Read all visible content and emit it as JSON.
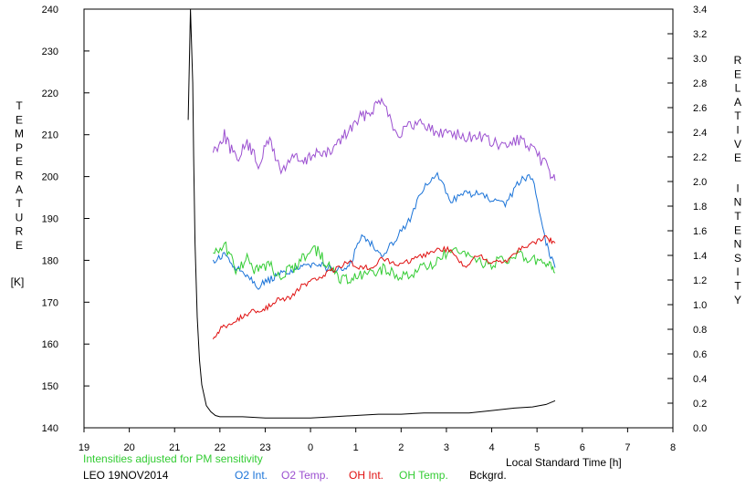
{
  "chart_data": {
    "type": "line",
    "y_left_label": "TEMPERATURE",
    "y_left_unit": "[K]",
    "y_right_label": "RELATIVE INTENSITY",
    "xlabel": "Local Standard Time [h]",
    "x_ticks": [
      "19",
      "20",
      "21",
      "22",
      "23",
      "0",
      "1",
      "2",
      "3",
      "4",
      "5",
      "6",
      "7",
      "8"
    ],
    "ylim_left": [
      140,
      240
    ],
    "ylim_right": [
      0.0,
      3.4
    ],
    "y_left_ticks": [
      140,
      150,
      160,
      170,
      180,
      190,
      200,
      210,
      220,
      230,
      240
    ],
    "y_right_ticks": [
      "0.0",
      "0.2",
      "0.4",
      "0.6",
      "0.8",
      "1.0",
      "1.2",
      "1.4",
      "1.6",
      "1.8",
      "2.0",
      "2.2",
      "2.4",
      "2.6",
      "2.8",
      "3.0",
      "3.2",
      "3.4"
    ],
    "note": "Intensities adjusted for PM sensitivity",
    "station_date": "LEO 19NOV2014",
    "legend": [
      {
        "name": "O2 Int.",
        "color": "#1a73d8"
      },
      {
        "name": "O2 Temp.",
        "color": "#9b4fd0"
      },
      {
        "name": "OH Int.",
        "color": "#e01010"
      },
      {
        "name": "OH Temp.",
        "color": "#33cc33"
      },
      {
        "name": "Bckgrd.",
        "color": "#000000"
      }
    ],
    "series": [
      {
        "name": "O2 Temp.",
        "color": "#9b4fd0",
        "axis": "left",
        "x": [
          21.85,
          22.1,
          22.35,
          22.6,
          22.85,
          23.1,
          23.35,
          23.6,
          23.85,
          24.1,
          24.35,
          24.6,
          24.85,
          25.1,
          25.35,
          25.6,
          25.9,
          26.2,
          26.5,
          26.8,
          27.1,
          27.4,
          27.7,
          28.0,
          28.3,
          28.6,
          28.9,
          29.2,
          29.4
        ],
        "y": [
          206,
          210,
          204,
          208,
          203,
          209,
          201,
          205,
          203,
          206,
          205,
          208,
          211,
          214,
          216,
          219,
          210,
          212,
          213,
          210,
          211,
          209,
          210,
          208,
          207,
          209,
          206,
          203,
          199
        ]
      },
      {
        "name": "O2 Int.",
        "color": "#1a73d8",
        "axis": "right",
        "x": [
          21.85,
          22.1,
          22.35,
          22.6,
          22.85,
          23.1,
          23.35,
          23.6,
          23.85,
          24.1,
          24.35,
          24.6,
          24.85,
          25.1,
          25.35,
          25.6,
          25.9,
          26.2,
          26.5,
          26.8,
          27.1,
          27.4,
          27.7,
          28.0,
          28.3,
          28.6,
          28.9,
          29.2,
          29.4
        ],
        "y": [
          1.35,
          1.4,
          1.3,
          1.25,
          1.15,
          1.2,
          1.25,
          1.28,
          1.3,
          1.35,
          1.3,
          1.28,
          1.3,
          1.55,
          1.5,
          1.4,
          1.55,
          1.7,
          1.95,
          2.05,
          1.85,
          1.9,
          1.9,
          1.85,
          1.8,
          2.0,
          2.05,
          1.5,
          1.3
        ]
      },
      {
        "name": "OH Temp.",
        "color": "#33cc33",
        "axis": "left",
        "x": [
          21.85,
          22.1,
          22.35,
          22.6,
          22.85,
          23.1,
          23.35,
          23.6,
          23.85,
          24.1,
          24.35,
          24.6,
          24.85,
          25.1,
          25.35,
          25.6,
          25.9,
          26.2,
          26.5,
          26.8,
          27.1,
          27.4,
          27.7,
          28.0,
          28.3,
          28.6,
          28.9,
          29.2,
          29.4
        ],
        "y": [
          182,
          184,
          178,
          180,
          177,
          179,
          176,
          178,
          181,
          183,
          179,
          176,
          175,
          176,
          177,
          178,
          176,
          177,
          178,
          180,
          182,
          181,
          180,
          179,
          180,
          181,
          180,
          179,
          177
        ]
      },
      {
        "name": "OH Int.",
        "color": "#e01010",
        "axis": "right",
        "x": [
          21.85,
          22.05,
          22.3,
          22.55,
          22.8,
          23.05,
          23.3,
          23.55,
          23.8,
          24.1,
          24.35,
          24.6,
          24.85,
          25.1,
          25.35,
          25.6,
          25.9,
          26.2,
          26.5,
          26.8,
          27.1,
          27.4,
          27.7,
          28.0,
          28.3,
          28.6,
          28.9,
          29.2,
          29.4
        ],
        "y": [
          0.72,
          0.82,
          0.85,
          0.92,
          0.95,
          0.98,
          1.05,
          1.05,
          1.15,
          1.2,
          1.25,
          1.3,
          1.35,
          1.3,
          1.3,
          1.38,
          1.32,
          1.35,
          1.4,
          1.45,
          1.45,
          1.3,
          1.4,
          1.35,
          1.35,
          1.45,
          1.5,
          1.55,
          1.5
        ]
      },
      {
        "name": "Bckgrd.",
        "color": "#000000",
        "axis": "right",
        "x": [
          21.3,
          21.35,
          21.4,
          21.42,
          21.45,
          21.5,
          21.55,
          21.6,
          21.7,
          21.8,
          21.9,
          22.0,
          22.5,
          23.0,
          23.5,
          24.0,
          24.5,
          25.0,
          25.5,
          26.0,
          26.5,
          27.0,
          27.5,
          28.0,
          28.5,
          28.9,
          29.2,
          29.4
        ],
        "y": [
          2.5,
          3.4,
          2.8,
          2.2,
          1.5,
          0.9,
          0.55,
          0.35,
          0.18,
          0.13,
          0.1,
          0.09,
          0.09,
          0.08,
          0.08,
          0.08,
          0.09,
          0.1,
          0.11,
          0.11,
          0.12,
          0.12,
          0.12,
          0.14,
          0.16,
          0.17,
          0.19,
          0.22
        ]
      }
    ]
  }
}
